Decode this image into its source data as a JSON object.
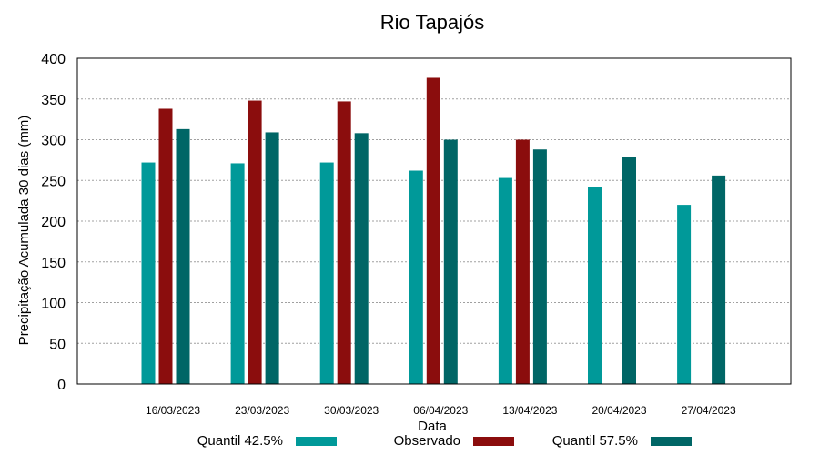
{
  "chart_data": {
    "type": "bar",
    "title": "Rio Tapajós",
    "xlabel": "Data",
    "ylabel": "Precipitação Acumulada 30 dias (mm)",
    "ylim": [
      0,
      400
    ],
    "yticks": [
      0,
      50,
      100,
      150,
      200,
      250,
      300,
      350,
      400
    ],
    "grid": true,
    "legend_position": "bottom",
    "categories": [
      "16/03/2023",
      "23/03/2023",
      "30/03/2023",
      "06/04/2023",
      "13/04/2023",
      "20/04/2023",
      "27/04/2023"
    ],
    "series": [
      {
        "name": "Quantil 42.5%",
        "color": "#009999",
        "values": [
          272,
          271,
          272,
          262,
          253,
          242,
          220
        ]
      },
      {
        "name": "Observado",
        "color": "#8b0d0d",
        "values": [
          338,
          348,
          347,
          376,
          300,
          null,
          null
        ]
      },
      {
        "name": "Quantil 57.5%",
        "color": "#006666",
        "values": [
          313,
          309,
          308,
          300,
          288,
          279,
          256
        ]
      }
    ]
  }
}
